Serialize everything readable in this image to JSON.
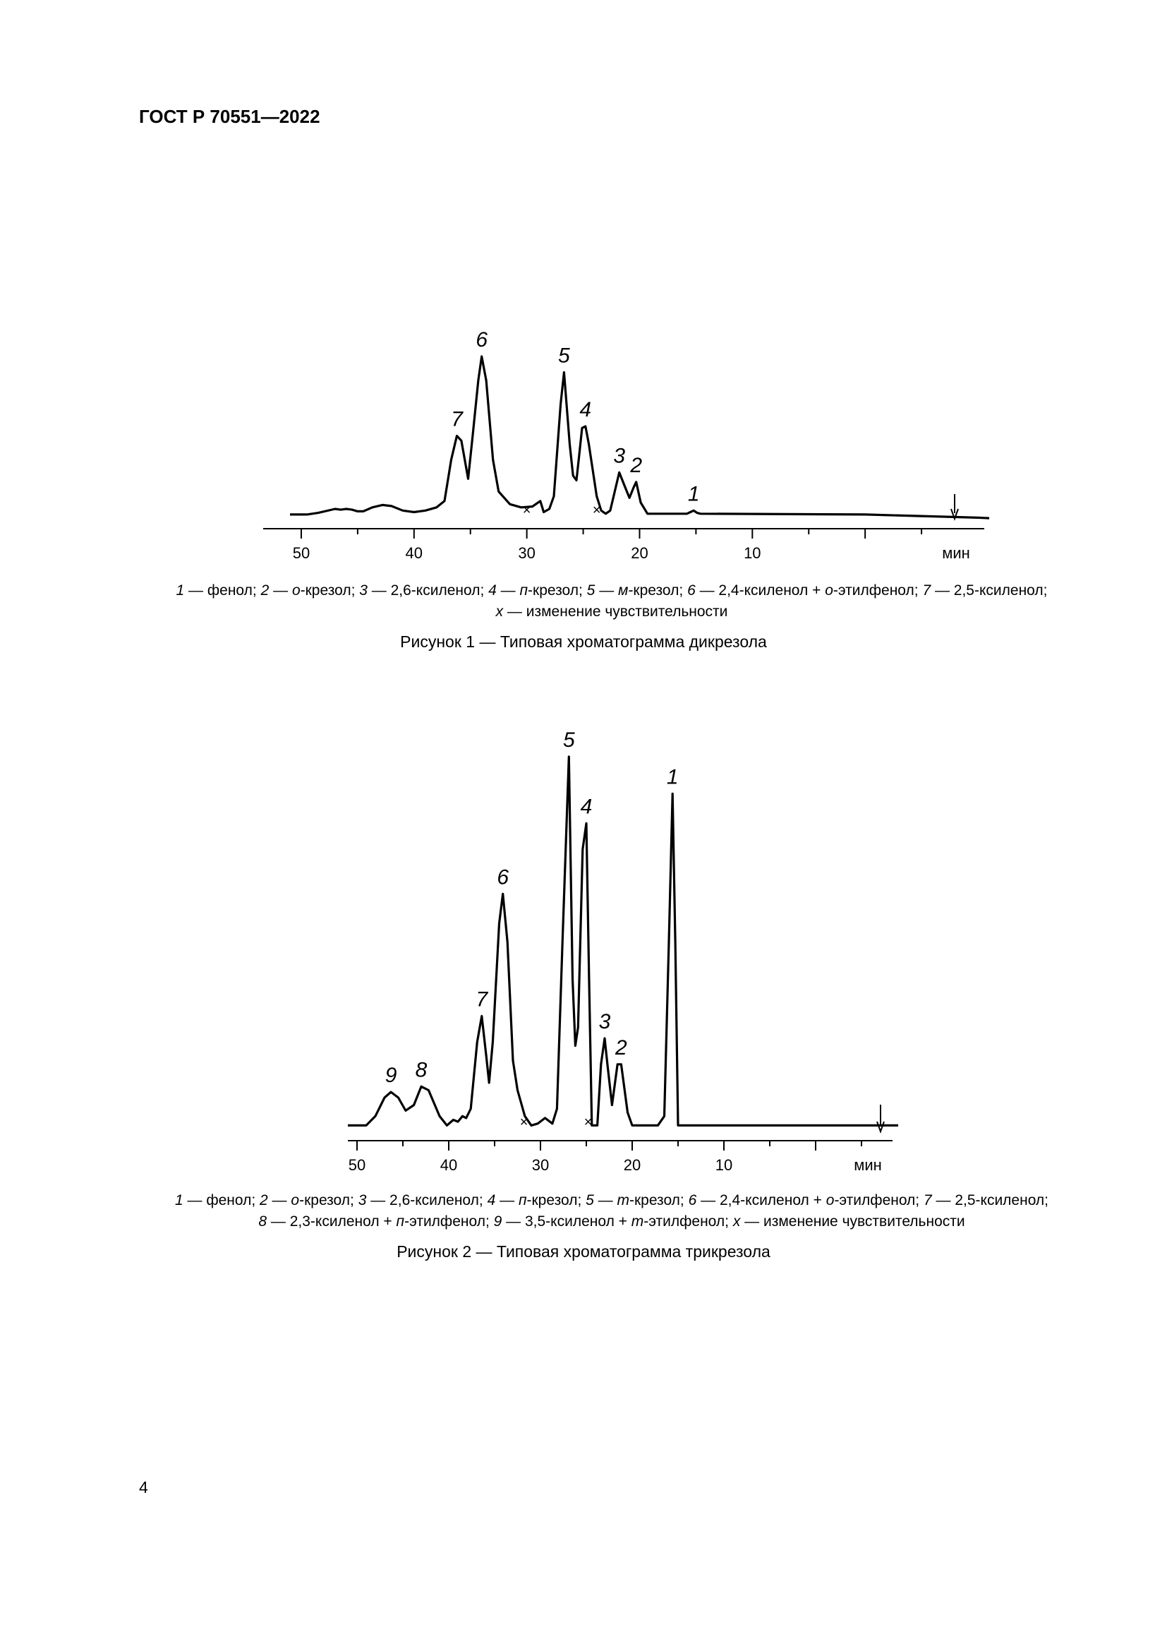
{
  "header": "ГОСТ Р 70551—2022",
  "page_number": "4",
  "figures": [
    {
      "legend_items": [
        {
          "n": "1",
          "t": " — фенол; "
        },
        {
          "n": "2",
          "t": " — ",
          "i": "о",
          "t2": "-крезол; "
        },
        {
          "n": "3",
          "t": " — 2,6-ксиленол; "
        },
        {
          "n": "4",
          "t": " — ",
          "i": "п",
          "t2": "-крезол; "
        },
        {
          "n": "5",
          "t": " — ",
          "i": "м",
          "t2": "-крезол; "
        },
        {
          "n": "6",
          "t": " — 2,4-ксиленол + ",
          "i": "о",
          "t2": "-этилфенол; "
        },
        {
          "n": "7",
          "t": " — 2,5-ксиленол;"
        },
        {
          "br": true
        },
        {
          "n": "x",
          "t": " — изменение чувствительности"
        }
      ],
      "caption": "Рисунок 1 — Типовая хроматограмма дикрезола"
    },
    {
      "legend_items": [
        {
          "n": "1",
          "t": " — фенол; "
        },
        {
          "n": "2",
          "t": " — ",
          "i": "о",
          "t2": "-крезол; "
        },
        {
          "n": "3",
          "t": " — 2,6-ксиленол; "
        },
        {
          "n": "4",
          "t": " — ",
          "i": "п",
          "t2": "-крезол; "
        },
        {
          "n": "5",
          "t": " — ",
          "i": "т",
          "t2": "-крезол; "
        },
        {
          "n": "6",
          "t": " — 2,4-ксиленол + ",
          "i": "о",
          "t2": "-этилфенол; "
        },
        {
          "n": "7",
          "t": " — 2,5-ксиленол;"
        },
        {
          "br": true
        },
        {
          "n": "8",
          "t": " — 2,3-ксиленол + ",
          "i": "п",
          "t2": "-этилфенол; "
        },
        {
          "n": "9",
          "t": " — 3,5-ксиленол + ",
          "i": "т",
          "t2": "-этилфенол; "
        },
        {
          "n": "x",
          "t": " — изменение чувствительности"
        }
      ],
      "caption": "Рисунок 2 — Типовая хроматограмма трикрезола"
    }
  ],
  "chart_data": [
    {
      "type": "line",
      "x_reversed": true,
      "xlim": [
        52,
        -9
      ],
      "ylim": [
        0,
        100
      ],
      "x_ticks": [
        50,
        40,
        30,
        20,
        10
      ],
      "x_unit_label": "мин",
      "injection_marker": "arrow",
      "trace": [
        [
          51.0,
          0.5
        ],
        [
          49.5,
          0.5
        ],
        [
          48.5,
          1.5
        ],
        [
          47.0,
          4.0
        ],
        [
          46.5,
          3.5
        ],
        [
          46.0,
          4.0
        ],
        [
          45.5,
          3.5
        ],
        [
          45.0,
          2.5
        ],
        [
          44.5,
          2.5
        ],
        [
          43.7,
          5.0
        ],
        [
          42.8,
          6.5
        ],
        [
          42.0,
          5.8
        ],
        [
          41.0,
          3.0
        ],
        [
          40.0,
          2.0
        ],
        [
          39.0,
          3.0
        ],
        [
          38.0,
          5.0
        ],
        [
          37.3,
          9.0
        ],
        [
          36.7,
          35.0
        ],
        [
          36.2,
          50.0
        ],
        [
          35.8,
          47.0
        ],
        [
          35.2,
          23.0
        ],
        [
          34.8,
          50.0
        ],
        [
          34.3,
          85.0
        ],
        [
          34.0,
          100.0
        ],
        [
          33.6,
          85.0
        ],
        [
          33.0,
          35.0
        ],
        [
          32.5,
          15.0
        ],
        [
          31.5,
          7.0
        ],
        [
          30.5,
          5.0
        ],
        [
          29.5,
          5.5
        ],
        [
          28.8,
          9.0
        ],
        [
          28.5,
          2.0
        ],
        [
          28.0,
          4.0
        ],
        [
          27.6,
          12.0
        ],
        [
          27.0,
          70.0
        ],
        [
          26.7,
          90.0
        ],
        [
          26.2,
          45.0
        ],
        [
          25.9,
          25.0
        ],
        [
          25.6,
          22.0
        ],
        [
          25.4,
          35.0
        ],
        [
          25.1,
          55.0
        ],
        [
          24.8,
          56.0
        ],
        [
          24.5,
          45.0
        ],
        [
          23.8,
          12.0
        ],
        [
          23.4,
          3.0
        ],
        [
          23.0,
          1.0
        ],
        [
          22.6,
          3.0
        ],
        [
          22.2,
          15.0
        ],
        [
          21.8,
          27.0
        ],
        [
          21.3,
          18.0
        ],
        [
          20.9,
          11.0
        ],
        [
          20.5,
          18.0
        ],
        [
          20.3,
          21.0
        ],
        [
          19.9,
          8.0
        ],
        [
          19.3,
          1.0
        ],
        [
          15.8,
          1.0
        ],
        [
          15.5,
          2.0
        ],
        [
          15.2,
          3.0
        ],
        [
          14.9,
          1.5
        ],
        [
          14.6,
          1.0
        ],
        [
          0,
          0.5
        ],
        [
          -10,
          -1.5
        ],
        [
          -11,
          -1.8
        ]
      ],
      "peaks": [
        {
          "label": "1",
          "x": 15.2,
          "y": 3
        },
        {
          "label": "2",
          "x": 20.3,
          "y": 21
        },
        {
          "label": "3",
          "x": 21.8,
          "y": 27
        },
        {
          "label": "4",
          "x": 24.8,
          "y": 56
        },
        {
          "label": "5",
          "x": 26.7,
          "y": 90
        },
        {
          "label": "6",
          "x": 34.0,
          "y": 100
        },
        {
          "label": "7",
          "x": 36.2,
          "y": 50
        }
      ],
      "sensitivity_changes": [
        30.0,
        23.8
      ]
    },
    {
      "type": "line",
      "x_reversed": true,
      "xlim": [
        52,
        -8
      ],
      "ylim": [
        0,
        100
      ],
      "x_ticks": [
        50,
        40,
        30,
        20,
        10
      ],
      "x_unit_label": "мин",
      "injection_marker": "arrow",
      "trace": [
        [
          51.0,
          0.5
        ],
        [
          49.0,
          0.5
        ],
        [
          48.0,
          3.0
        ],
        [
          47.0,
          8.0
        ],
        [
          46.3,
          9.5
        ],
        [
          45.5,
          8.0
        ],
        [
          44.7,
          4.5
        ],
        [
          43.8,
          6.0
        ],
        [
          43.0,
          11.0
        ],
        [
          42.2,
          10.0
        ],
        [
          41.6,
          6.5
        ],
        [
          41.0,
          3.0
        ],
        [
          40.2,
          0.5
        ],
        [
          39.5,
          2.0
        ],
        [
          39.0,
          1.5
        ],
        [
          38.5,
          3.0
        ],
        [
          38.1,
          2.5
        ],
        [
          37.6,
          5.0
        ],
        [
          36.9,
          23.0
        ],
        [
          36.4,
          30.0
        ],
        [
          35.9,
          19.0
        ],
        [
          35.6,
          12.0
        ],
        [
          35.2,
          23.0
        ],
        [
          34.5,
          55.0
        ],
        [
          34.1,
          63.0
        ],
        [
          33.6,
          50.0
        ],
        [
          33.0,
          18.0
        ],
        [
          32.5,
          10.0
        ],
        [
          31.7,
          3.0
        ],
        [
          31.0,
          0.5
        ],
        [
          30.3,
          1.0
        ],
        [
          29.5,
          2.5
        ],
        [
          28.7,
          1.0
        ],
        [
          28.2,
          5.0
        ],
        [
          27.6,
          50.0
        ],
        [
          26.9,
          100.0
        ],
        [
          26.5,
          40.0
        ],
        [
          26.2,
          22.0
        ],
        [
          25.9,
          27.0
        ],
        [
          25.4,
          75.0
        ],
        [
          25.0,
          82.0
        ],
        [
          24.7,
          40.0
        ],
        [
          24.4,
          0.5
        ],
        [
          23.8,
          0.5
        ],
        [
          23.4,
          17.0
        ],
        [
          23.0,
          24.0
        ],
        [
          22.7,
          17.0
        ],
        [
          22.2,
          6.0
        ],
        [
          21.6,
          17.0
        ],
        [
          21.2,
          17.0
        ],
        [
          20.5,
          4.0
        ],
        [
          20.0,
          0.5
        ],
        [
          17.2,
          0.5
        ],
        [
          16.5,
          3.0
        ],
        [
          16.0,
          50.0
        ],
        [
          15.6,
          90.0
        ],
        [
          15.3,
          50.0
        ],
        [
          15.0,
          0.5
        ],
        [
          -9,
          0.5
        ]
      ],
      "peaks": [
        {
          "label": "1",
          "x": 15.6,
          "y": 90
        },
        {
          "label": "2",
          "x": 21.2,
          "y": 17
        },
        {
          "label": "3",
          "x": 23.0,
          "y": 24
        },
        {
          "label": "4",
          "x": 25.0,
          "y": 82
        },
        {
          "label": "5",
          "x": 26.9,
          "y": 100
        },
        {
          "label": "6",
          "x": 34.1,
          "y": 63
        },
        {
          "label": "7",
          "x": 36.4,
          "y": 30
        },
        {
          "label": "8",
          "x": 43.0,
          "y": 11
        },
        {
          "label": "9",
          "x": 46.3,
          "y": 9.5
        }
      ],
      "sensitivity_changes": [
        31.8,
        24.8
      ]
    }
  ]
}
